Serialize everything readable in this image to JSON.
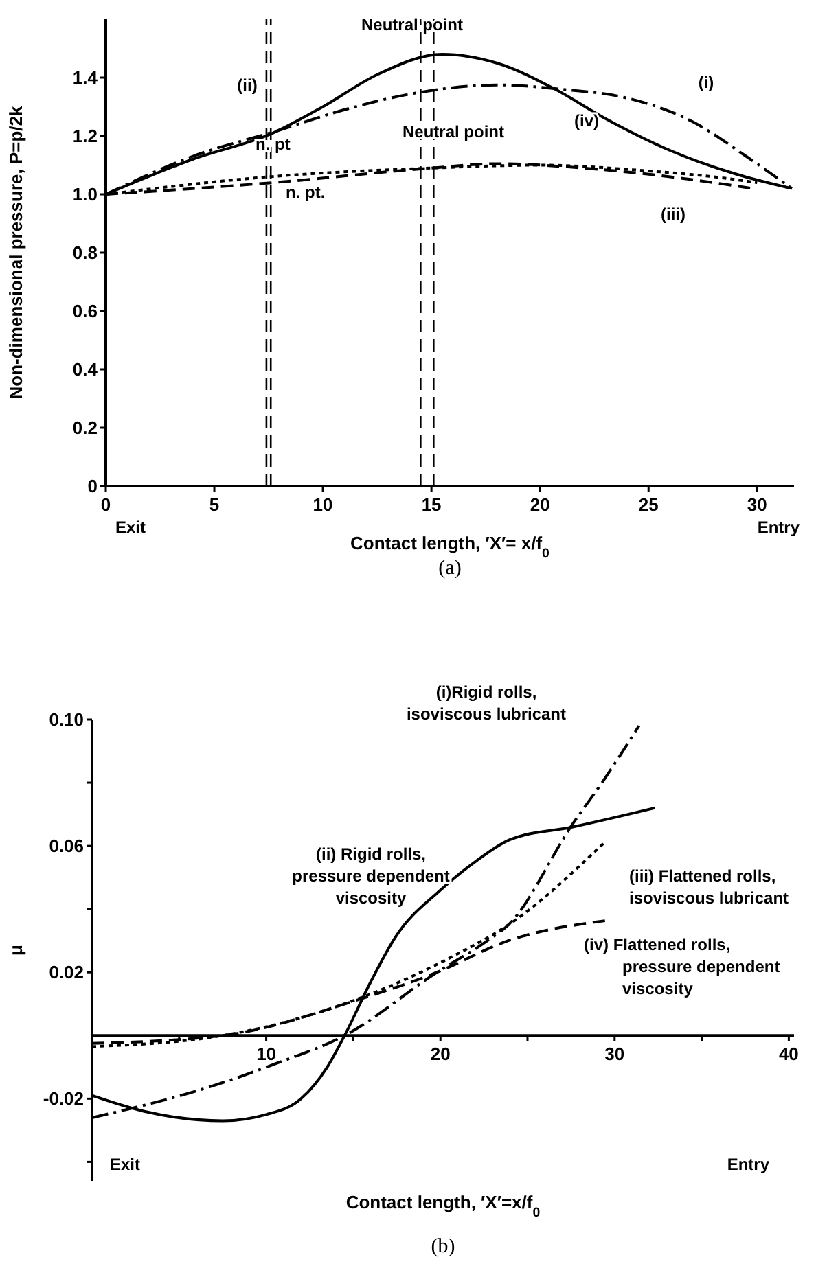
{
  "chart_data": [
    {
      "type": "line",
      "title": "(a)",
      "xlabel": "Contact length, ′X′= x/f$_{0}$",
      "ylabel": "Non-dimensional pressure, P=p/2k",
      "xlim": [
        0,
        31.7
      ],
      "xticks": [
        0,
        5,
        10,
        15,
        20,
        25,
        30
      ],
      "ylim": [
        0,
        1.6
      ],
      "yticks": [
        0,
        {
          "value": 0.2,
          "label": "0.2"
        },
        {
          "value": 0.4,
          "label": "0.4"
        },
        {
          "value": 0.6,
          "label": "0.6"
        },
        {
          "value": 0.8,
          "label": "0.8"
        },
        {
          "value": 1.0,
          "label": "1.0"
        },
        {
          "value": 1.2,
          "label": "1.2"
        },
        {
          "value": 1.4,
          "label": "1.4"
        }
      ],
      "grid": false,
      "marker": "none",
      "series": [
        {
          "color": "#000000",
          "line_style": "dashdot",
          "x": [
            0,
            4,
            8,
            11,
            14.5,
            18,
            21,
            24,
            27,
            29.5,
            31.6
          ],
          "values": [
            1.0,
            1.13,
            1.22,
            1.29,
            1.35,
            1.375,
            1.36,
            1.33,
            1.25,
            1.13,
            1.02
          ]
        },
        {
          "color": "#000000",
          "line_style": "solid",
          "x": [
            0,
            4,
            7.7,
            10,
            12.5,
            15.5,
            18,
            20.7,
            23,
            26,
            29,
            31.6
          ],
          "values": [
            1.0,
            1.12,
            1.21,
            1.3,
            1.41,
            1.48,
            1.45,
            1.36,
            1.26,
            1.15,
            1.07,
            1.02
          ]
        },
        {
          "color": "#000000",
          "line_style": "dotted",
          "x": [
            0,
            7.5,
            15,
            20,
            25,
            28,
            30
          ],
          "values": [
            1.0,
            1.06,
            1.09,
            1.1,
            1.08,
            1.06,
            1.04
          ]
        },
        {
          "color": "#000000",
          "line_style": "dashed",
          "x": [
            0,
            7.7,
            15,
            18,
            22,
            26,
            29.8
          ],
          "values": [
            1.0,
            1.04,
            1.09,
            1.105,
            1.09,
            1.06,
            1.02
          ]
        }
      ],
      "ref_lines": [
        {
          "axis": "x",
          "value": 7.4,
          "line_style": "dashed"
        },
        {
          "axis": "x",
          "value": 7.6,
          "line_style": "dashed"
        },
        {
          "axis": "x",
          "value": 14.5,
          "line_style": "dashed"
        },
        {
          "axis": "x",
          "value": 15.1,
          "line_style": "dashed"
        }
      ],
      "annotations": [
        "Exit",
        "Entry",
        "Neutral point",
        "Neutral point",
        "n. pt",
        "n. pt.",
        "(i)",
        "(ii)",
        "(iii)",
        "(iv)"
      ]
    },
    {
      "type": "line",
      "title": "(b)",
      "xlabel": "Contact length, ′X′=x/f$_{0}$",
      "ylabel": "μ",
      "xlim": [
        0,
        40.3
      ],
      "xticks": [
        {
          "value": 5,
          "label": null
        },
        10,
        {
          "value": 15,
          "label": null
        },
        20,
        {
          "value": 25,
          "label": null
        },
        30,
        {
          "value": 35,
          "label": null
        },
        40
      ],
      "ylim": [
        -0.046,
        0.1
      ],
      "yticks": [
        {
          "value": -0.04,
          "label": null
        },
        {
          "value": -0.02,
          "label": "-0.02"
        },
        {
          "value": 0.02,
          "label": "0.02"
        },
        {
          "value": 0.04,
          "label": null
        },
        {
          "value": 0.06,
          "label": "0.06"
        },
        {
          "value": 0.08,
          "label": null
        },
        {
          "value": 0.1,
          "label": "0.10"
        }
      ],
      "grid": false,
      "marker": "none",
      "series": [
        {
          "color": "#000000",
          "line_style": "dashdot",
          "x": [
            0,
            6.9,
            10.5,
            14.5,
            19.8,
            22.7,
            23.9,
            27.6,
            29.4,
            31.4
          ],
          "values": [
            -0.026,
            -0.016,
            -0.009,
            0,
            0.02,
            0.03,
            0.035,
            0.067,
            0.081,
            0.098
          ]
        },
        {
          "color": "#000000",
          "line_style": "solid",
          "x": [
            0,
            3,
            7.5,
            10,
            12,
            13.5,
            14.5,
            16,
            17.4,
            20,
            22,
            24,
            27.6,
            32.3
          ],
          "values": [
            -0.019,
            -0.024,
            -0.027,
            -0.025,
            -0.02,
            -0.01,
            0,
            0.017,
            0.031,
            0.046,
            0.055,
            0.062,
            0.066,
            0.072
          ]
        },
        {
          "color": "#000000",
          "line_style": "dotted",
          "x": [
            0,
            7.5,
            15.7,
            20.9,
            23.9,
            29.4
          ],
          "values": [
            -0.0035,
            0,
            0.0125,
            0.0256,
            0.035,
            0.061
          ]
        },
        {
          "color": "#000000",
          "line_style": "dashed",
          "x": [
            0,
            7.5,
            15.1,
            19.8,
            23.9,
            29.7
          ],
          "values": [
            -0.0025,
            0,
            0.011,
            0.02,
            0.03,
            0.0365
          ]
        }
      ],
      "annotations": [
        "Exit",
        "Entry",
        "(i)Rigid rolls,\nisoviscous lubricant",
        "(ii) Rigid rolls,\npressure dependent\nviscosity",
        "(iii) Flattened rolls,\nisoviscous lubricant",
        "(iv) Flattened rolls,\npressure dependent\nviscosity"
      ]
    }
  ]
}
